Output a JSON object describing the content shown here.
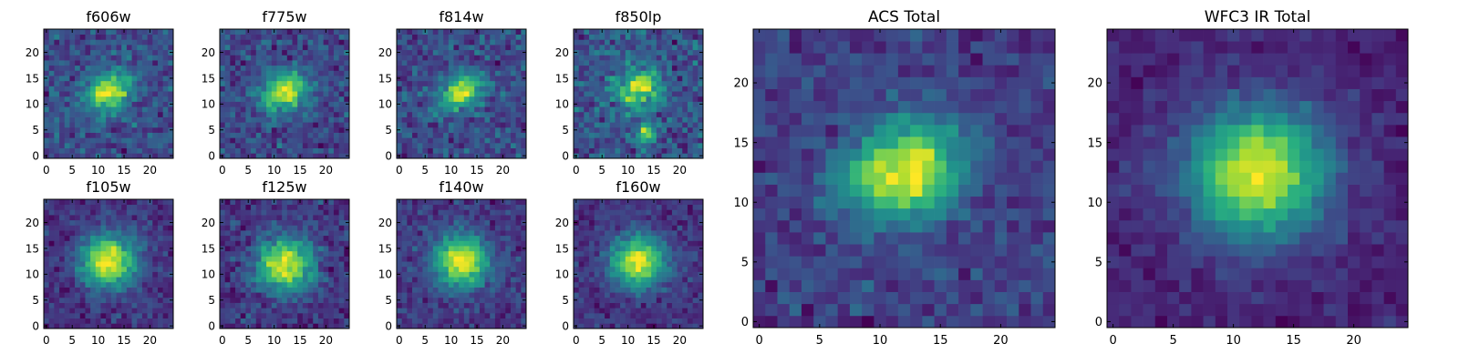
{
  "figure": {
    "colormap": [
      "#440154",
      "#472d7b",
      "#3b528b",
      "#2c728e",
      "#21918c",
      "#28ae80",
      "#5ec962",
      "#addc30",
      "#fde725"
    ]
  },
  "chart_data": [
    {
      "type": "heatmap",
      "title": "f606w",
      "xlim": [
        0,
        24
      ],
      "ylim": [
        0,
        24
      ],
      "x_ticks": [
        0,
        5,
        10,
        15,
        20
      ],
      "y_ticks": [
        0,
        5,
        10,
        15,
        20
      ],
      "grid_size": [
        25,
        25
      ],
      "peak": [
        12,
        12.5
      ],
      "spread": [
        3.2,
        2.4
      ],
      "rotation_deg": 20,
      "noise": 0.2,
      "seed": 11
    },
    {
      "type": "heatmap",
      "title": "f775w",
      "xlim": [
        0,
        24
      ],
      "ylim": [
        0,
        24
      ],
      "x_ticks": [
        0,
        5,
        10,
        15,
        20
      ],
      "y_ticks": [
        0,
        5,
        10,
        15,
        20
      ],
      "grid_size": [
        25,
        25
      ],
      "peak": [
        12,
        12.5
      ],
      "spread": [
        3.2,
        2.6
      ],
      "rotation_deg": 20,
      "noise": 0.2,
      "seed": 23
    },
    {
      "type": "heatmap",
      "title": "f814w",
      "xlim": [
        0,
        24
      ],
      "ylim": [
        0,
        24
      ],
      "x_ticks": [
        0,
        5,
        10,
        15,
        20
      ],
      "y_ticks": [
        0,
        5,
        10,
        15,
        20
      ],
      "grid_size": [
        25,
        25
      ],
      "peak": [
        12,
        12.5
      ],
      "spread": [
        3.0,
        2.2
      ],
      "rotation_deg": 25,
      "noise": 0.22,
      "seed": 37
    },
    {
      "type": "heatmap",
      "title": "f850lp",
      "xlim": [
        0,
        24
      ],
      "ylim": [
        0,
        24
      ],
      "x_ticks": [
        0,
        5,
        10,
        15,
        20
      ],
      "y_ticks": [
        0,
        5,
        10,
        15,
        20
      ],
      "grid_size": [
        25,
        25
      ],
      "peak": [
        12,
        13
      ],
      "spread": [
        3.0,
        2.4
      ],
      "rotation_deg": 20,
      "noise": 0.25,
      "seed": 41,
      "secondary_peak": [
        13.5,
        4.5
      ],
      "secondary_spread": [
        1.2,
        1.4
      ],
      "secondary_amplitude": 0.9
    },
    {
      "type": "heatmap",
      "title": "f105w",
      "xlim": [
        0,
        24
      ],
      "ylim": [
        0,
        24
      ],
      "x_ticks": [
        0,
        5,
        10,
        15,
        20
      ],
      "y_ticks": [
        0,
        5,
        10,
        15,
        20
      ],
      "grid_size": [
        25,
        25
      ],
      "peak": [
        12,
        12.5
      ],
      "spread": [
        3.6,
        3.4
      ],
      "rotation_deg": 0,
      "noise": 0.12,
      "seed": 53
    },
    {
      "type": "heatmap",
      "title": "f125w",
      "xlim": [
        0,
        24
      ],
      "ylim": [
        0,
        24
      ],
      "x_ticks": [
        0,
        5,
        10,
        15,
        20
      ],
      "y_ticks": [
        0,
        5,
        10,
        15,
        20
      ],
      "grid_size": [
        25,
        25
      ],
      "peak": [
        12,
        12
      ],
      "spread": [
        3.8,
        3.6
      ],
      "rotation_deg": 0,
      "noise": 0.15,
      "seed": 67
    },
    {
      "type": "heatmap",
      "title": "f140w",
      "xlim": [
        0,
        24
      ],
      "ylim": [
        0,
        24
      ],
      "x_ticks": [
        0,
        5,
        10,
        15,
        20
      ],
      "y_ticks": [
        0,
        5,
        10,
        15,
        20
      ],
      "grid_size": [
        25,
        25
      ],
      "peak": [
        12,
        12.5
      ],
      "spread": [
        3.6,
        3.4
      ],
      "rotation_deg": 0,
      "noise": 0.13,
      "seed": 79
    },
    {
      "type": "heatmap",
      "title": "f160w",
      "xlim": [
        0,
        24
      ],
      "ylim": [
        0,
        24
      ],
      "x_ticks": [
        0,
        5,
        10,
        15,
        20
      ],
      "y_ticks": [
        0,
        5,
        10,
        15,
        20
      ],
      "grid_size": [
        25,
        25
      ],
      "peak": [
        12,
        12.5
      ],
      "spread": [
        3.6,
        3.4
      ],
      "rotation_deg": 0,
      "noise": 0.12,
      "seed": 83
    },
    {
      "type": "heatmap",
      "title": "ACS Total",
      "xlim": [
        0,
        24
      ],
      "ylim": [
        0,
        24
      ],
      "x_ticks": [
        0,
        5,
        10,
        15,
        20
      ],
      "y_ticks": [
        0,
        5,
        10,
        15,
        20
      ],
      "grid_size": [
        25,
        25
      ],
      "peak": [
        12,
        12.5
      ],
      "spread": [
        3.4,
        2.6
      ],
      "rotation_deg": 20,
      "noise": 0.13,
      "seed": 97
    },
    {
      "type": "heatmap",
      "title": "WFC3 IR Total",
      "xlim": [
        0,
        24
      ],
      "ylim": [
        0,
        24
      ],
      "x_ticks": [
        0,
        5,
        10,
        15,
        20
      ],
      "y_ticks": [
        0,
        5,
        10,
        15,
        20
      ],
      "grid_size": [
        25,
        25
      ],
      "peak": [
        12,
        12.5
      ],
      "spread": [
        4.0,
        3.8
      ],
      "rotation_deg": 0,
      "noise": 0.08,
      "seed": 101
    }
  ]
}
